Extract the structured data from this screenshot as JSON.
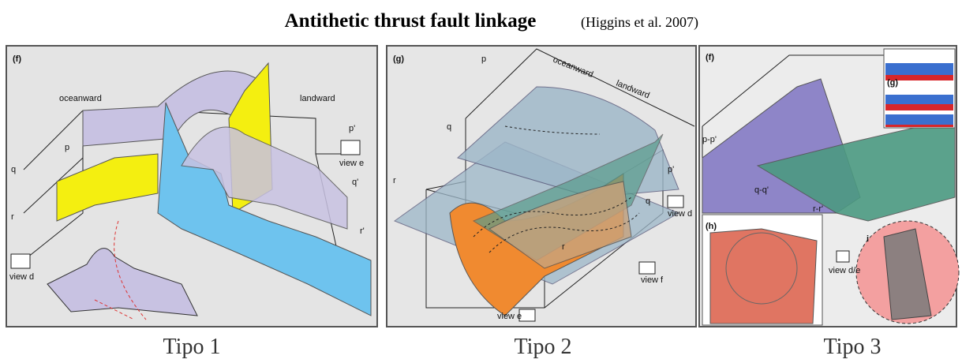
{
  "header": {
    "title": "Antithetic thrust fault linkage",
    "citation": "(Higgins et al. 2007)"
  },
  "panels": [
    {
      "caption": "Tipo 1",
      "labels": {
        "panel": "(f)",
        "seaward": "oceanward",
        "landward": "landward",
        "p": "p",
        "p2": "p'",
        "q": "q",
        "q2": "q'",
        "r": "r",
        "r2": "r'",
        "view1": "view e",
        "view2": "view d"
      }
    },
    {
      "caption": "Tipo 2",
      "labels": {
        "panel": "(g)",
        "p": "p",
        "seaward": "oceanward",
        "landward": "landward",
        "q": "q",
        "r": "r",
        "p2": "p'",
        "q2": "q",
        "r2": "r",
        "view1": "view d",
        "view2": "view f",
        "view3": "view e"
      }
    },
    {
      "caption": "Tipo 3",
      "labels": {
        "panel": "(f)",
        "inset1": "(g)",
        "inset2": "(h)",
        "inset3": "i",
        "p": "p-p'",
        "q": "q-q'",
        "r": "r-r'",
        "view1": "view d/e"
      }
    }
  ]
}
